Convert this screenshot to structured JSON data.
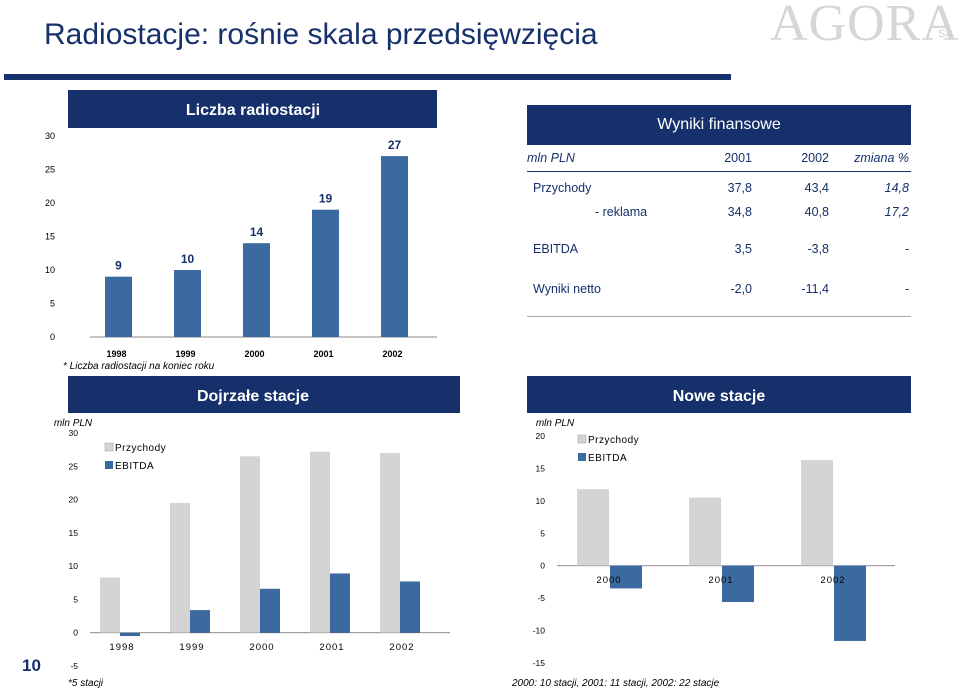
{
  "header": {
    "title": "Radiostacje: rośnie skala przedsięwzięcia",
    "logo_text": "AGORA",
    "logo_suffix": "SA",
    "page_number": "10",
    "rule_color": "#16306b"
  },
  "fin_table": {
    "title": "Wyniki finansowe",
    "columns": [
      "mln PLN",
      "2001",
      "2002",
      "zmiana %"
    ],
    "rows": [
      {
        "label": "Przychody",
        "y2001": "37,8",
        "y2002": "43,4",
        "change": "14,8"
      },
      {
        "label": "- reklama",
        "y2001": "34,8",
        "y2002": "40,8",
        "change": "17,2"
      },
      {
        "label": "EBITDA",
        "y2001": "3,5",
        "y2002": "-3,8",
        "change": "-"
      },
      {
        "label": "Wyniki netto",
        "y2001": "-2,0",
        "y2002": "-11,4",
        "change": "-"
      }
    ]
  },
  "footnotes": {
    "stations": "* Liczba radiostacji na koniec roku",
    "mature": "*5 stacji",
    "new": "2000: 10 stacji, 2001: 11 stacji, 2002: 22 stacje"
  },
  "colors": {
    "navy": "#16306b",
    "bar_blue": "#3b6aa0",
    "bar_grey": "#d4d4d4"
  },
  "chart_data": [
    {
      "type": "bar",
      "title": "Liczba radiostacji",
      "categories": [
        "1998",
        "1999",
        "2000",
        "2001",
        "2002"
      ],
      "values": [
        9,
        10,
        14,
        19,
        27
      ],
      "data_labels": [
        "9",
        "10",
        "14",
        "19",
        "27"
      ],
      "ylim": [
        0,
        30
      ],
      "yticks": [
        0,
        5,
        10,
        15,
        20,
        25,
        30
      ],
      "grid": false
    },
    {
      "type": "bar",
      "title": "Dojrzałe stacje",
      "ylabel": "mln PLN",
      "categories": [
        "1998",
        "1999",
        "2000",
        "2001",
        "2002"
      ],
      "series": [
        {
          "name": "Przychody",
          "values": [
            8.3,
            19.5,
            26.5,
            27.2,
            27.0
          ]
        },
        {
          "name": "EBITDA",
          "values": [
            -0.5,
            3.4,
            6.6,
            8.9,
            7.7
          ]
        }
      ],
      "ylim": [
        -5,
        30
      ],
      "yticks": [
        -5,
        0,
        5,
        10,
        15,
        20,
        25,
        30
      ],
      "legend": "top-left"
    },
    {
      "type": "bar",
      "title": "Nowe stacje",
      "ylabel": "mln PLN",
      "categories": [
        "2000",
        "2001",
        "2002"
      ],
      "series": [
        {
          "name": "Przychody",
          "values": [
            11.8,
            10.5,
            16.3
          ]
        },
        {
          "name": "EBITDA",
          "values": [
            -3.5,
            -5.6,
            -11.6
          ]
        }
      ],
      "ylim": [
        -15,
        20
      ],
      "yticks": [
        -15,
        -10,
        -5,
        0,
        5,
        10,
        15,
        20
      ],
      "legend": "top-left"
    }
  ]
}
